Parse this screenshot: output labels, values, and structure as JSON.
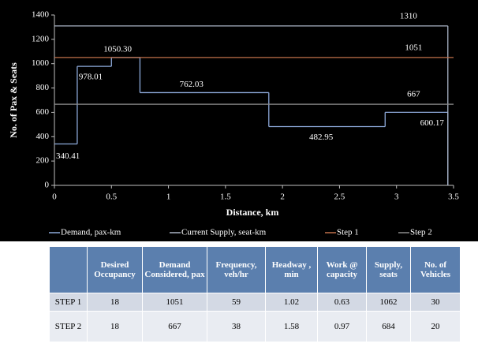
{
  "chart_data": {
    "type": "step",
    "xlabel": "Distance, km",
    "ylabel": "No. of Pax & Seats",
    "xlim": [
      0,
      3.5
    ],
    "xticks": [
      0,
      0.5,
      1,
      1.5,
      2,
      2.5,
      3,
      3.5
    ],
    "ylim": [
      0,
      1400
    ],
    "yticks": [
      0,
      200,
      400,
      600,
      800,
      1000,
      1200,
      1400
    ],
    "legend": "bottom",
    "series": [
      {
        "name": "Demand, pax-km",
        "color": "#8eaadb",
        "x": [
          0,
          0.2,
          0.5,
          0.75,
          1.88,
          2.9,
          3.45
        ],
        "values": [
          340.41,
          978.01,
          1050.3,
          762.03,
          482.95,
          600.17,
          0
        ],
        "value_labels": [
          "340.41",
          "978.01",
          "1050.30",
          "762.03",
          "482.95",
          "600.17",
          null
        ]
      },
      {
        "name": "Current Supply, seat-km",
        "color": "#aab4c6",
        "x": [
          0,
          3.45
        ],
        "values": [
          1310,
          0
        ]
      },
      {
        "name": "Step 1",
        "color": "#c0704a",
        "x": [
          0,
          3.5
        ],
        "values": [
          1051,
          1051
        ]
      },
      {
        "name": "Step 2",
        "color": "#8c8c8c",
        "x": [
          0,
          3.5
        ],
        "values": [
          667,
          667
        ]
      }
    ]
  },
  "table": {
    "header": [
      "",
      "Desired Occupancy",
      "Demand Considered, pax",
      "Frequency, veh/hr",
      "Headway , min",
      "Work @ capacity",
      "Supply, seats",
      "No. of Vehicles"
    ],
    "rows": [
      [
        "STEP 1",
        "18",
        "1051",
        "59",
        "1.02",
        "0.63",
        "1062",
        "30"
      ],
      [
        "STEP 2",
        "18",
        "667",
        "38",
        "1.58",
        "0.97",
        "684",
        "20"
      ]
    ]
  }
}
